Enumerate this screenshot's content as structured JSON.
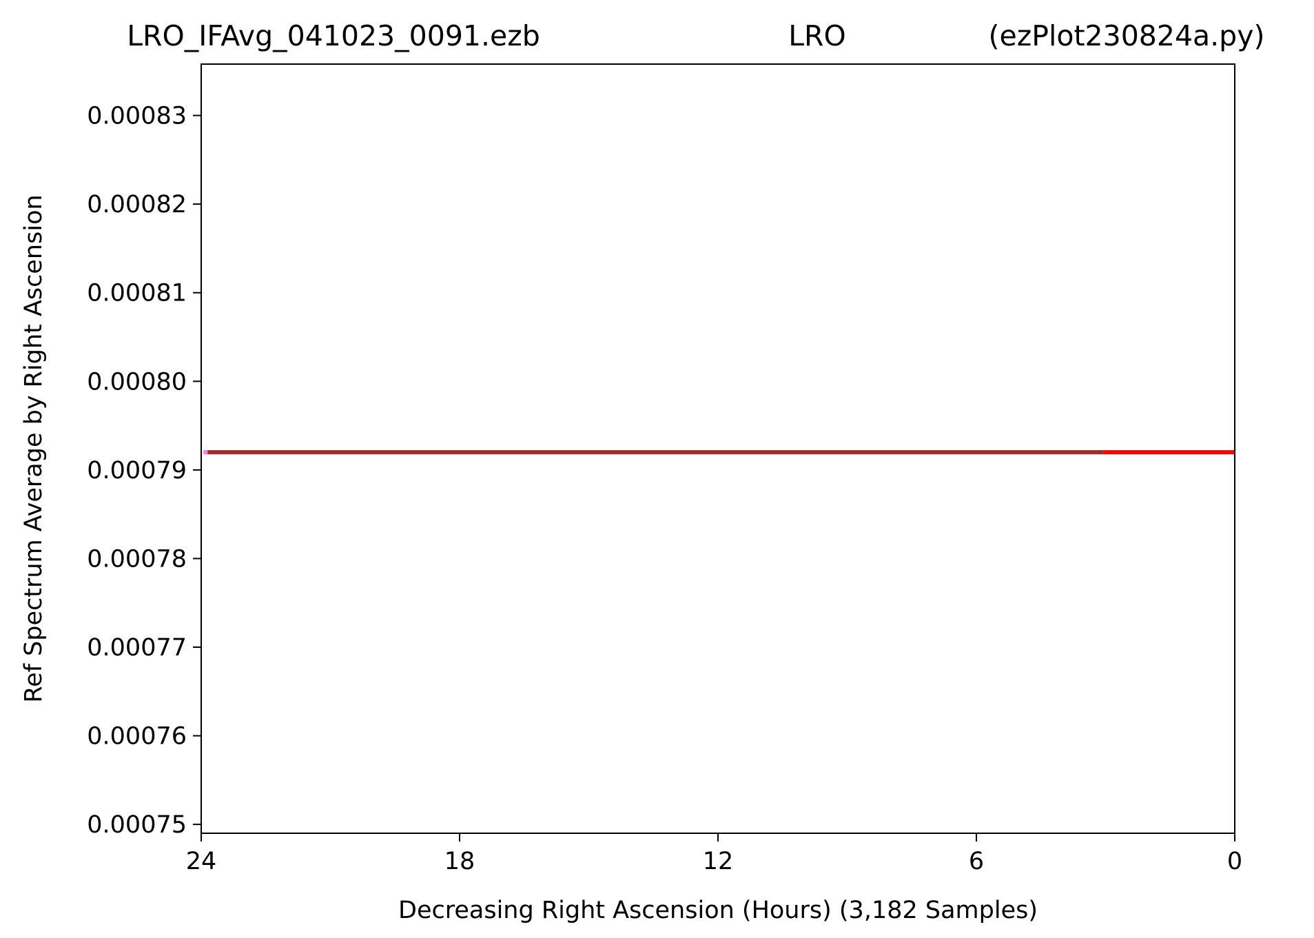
{
  "chart_data": {
    "type": "line",
    "title_parts": [
      "LRO_IFAvg_041023_0091.ezb",
      "LRO",
      "(ezPlot230824a.py)"
    ],
    "xlabel": "Decreasing Right Ascension (Hours) (3,182 Samples)",
    "ylabel": "Ref Spectrum Average by Right Ascension",
    "xlim": [
      24,
      0
    ],
    "ylim": [
      0.000749,
      0.0008358
    ],
    "x_ticks": [
      24,
      18,
      12,
      6,
      0
    ],
    "x_tick_labels": [
      "24",
      "18",
      "12",
      "6",
      "0"
    ],
    "y_ticks": [
      0.00075,
      0.00076,
      0.00077,
      0.00078,
      0.00079,
      0.0008,
      0.00081,
      0.00082,
      0.00083
    ],
    "y_tick_labels": [
      "0.00075",
      "0.00076",
      "0.00077",
      "0.00078",
      "0.00079",
      "0.00080",
      "0.00081",
      "0.00082",
      "0.00083"
    ],
    "grid": false,
    "legend": "none",
    "series": [
      {
        "x": [
          23.9,
          3.05
        ],
        "values": [
          0.000792,
          0.000792
        ],
        "color": "#a52a2a"
      },
      {
        "x": [
          3.05,
          0.0
        ],
        "values": [
          0.000792,
          0.000792
        ],
        "color": "#ff0000"
      },
      {
        "x": [
          23.95,
          23.85
        ],
        "values": [
          0.000792,
          0.000792
        ],
        "color": "#ee82ee"
      }
    ]
  }
}
